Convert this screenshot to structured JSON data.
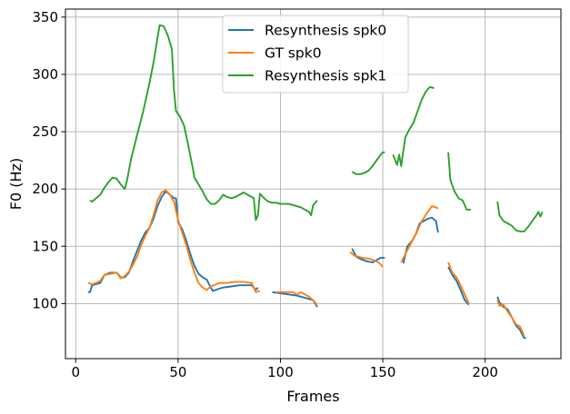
{
  "chart_data": {
    "type": "line",
    "title": "",
    "xlabel": "Frames",
    "ylabel": "F0 (Hz)",
    "xlim": [
      -5,
      237
    ],
    "ylim": [
      52,
      357
    ],
    "xticks": [
      0,
      50,
      100,
      150,
      200
    ],
    "yticks": [
      100,
      150,
      200,
      250,
      300,
      350
    ],
    "grid": true,
    "legend_position": "top-center",
    "series": [
      {
        "name": "Resynthesis spk0",
        "color": "#1f77b4",
        "segments": [
          [
            [
              6,
              110
            ],
            [
              7,
              110
            ],
            [
              8,
              116
            ],
            [
              10,
              117
            ],
            [
              12,
              118
            ],
            [
              14,
              125
            ],
            [
              17,
              127
            ],
            [
              20,
              127
            ],
            [
              22,
              123
            ],
            [
              24,
              123
            ],
            [
              26,
              127
            ],
            [
              28,
              137
            ],
            [
              30,
              146
            ],
            [
              32,
              155
            ],
            [
              34,
              162
            ],
            [
              36,
              166
            ],
            [
              38,
              174
            ],
            [
              40,
              185
            ],
            [
              42,
              193
            ],
            [
              44,
              198
            ],
            [
              46,
              195
            ],
            [
              48,
              192
            ],
            [
              49,
              192
            ],
            [
              50,
              171
            ],
            [
              52,
              165
            ],
            [
              54,
              155
            ],
            [
              56,
              143
            ],
            [
              58,
              133
            ],
            [
              60,
              126
            ],
            [
              62,
              123
            ],
            [
              64,
              121
            ],
            [
              66,
              114
            ],
            [
              67,
              111
            ],
            [
              70,
              113
            ],
            [
              72,
              114
            ],
            [
              76,
              115
            ],
            [
              80,
              116
            ],
            [
              84,
              116
            ],
            [
              86,
              116
            ],
            [
              88,
              112
            ],
            [
              89,
              114
            ]
          ],
          [
            [
              96,
              110
            ],
            [
              100,
              109
            ],
            [
              104,
              108
            ],
            [
              108,
              107
            ],
            [
              112,
              105
            ],
            [
              116,
              103
            ],
            [
              118,
              97
            ]
          ],
          [
            [
              135,
              148
            ],
            [
              137,
              141
            ],
            [
              139,
              139
            ],
            [
              142,
              137
            ],
            [
              145,
              136
            ],
            [
              147,
              138
            ],
            [
              149,
              140
            ],
            [
              151,
              140
            ]
          ],
          [
            [
              160,
              135
            ],
            [
              162,
              150
            ],
            [
              164,
              154
            ],
            [
              166,
              160
            ],
            [
              168,
              170
            ],
            [
              170,
              172
            ],
            [
              172,
              174
            ],
            [
              174,
              175
            ],
            [
              176,
              172
            ],
            [
              177,
              162
            ]
          ],
          [
            [
              182,
              132
            ],
            [
              184,
              125
            ],
            [
              186,
              120
            ],
            [
              188,
              112
            ],
            [
              190,
              103
            ],
            [
              192,
              99
            ]
          ],
          [
            [
              206,
              106
            ],
            [
              207,
              101
            ],
            [
              209,
              97
            ],
            [
              211,
              95
            ],
            [
              213,
              88
            ],
            [
              215,
              81
            ],
            [
              217,
              77
            ],
            [
              219,
              70
            ],
            [
              220,
              70
            ]
          ]
        ]
      },
      {
        "name": "GT spk0",
        "color": "#ff7f0e",
        "segments": [
          [
            [
              6,
              118
            ],
            [
              8,
              117
            ],
            [
              10,
              118
            ],
            [
              12,
              120
            ],
            [
              14,
              125
            ],
            [
              17,
              126
            ],
            [
              20,
              127
            ],
            [
              22,
              122
            ],
            [
              24,
              124
            ],
            [
              26,
              128
            ],
            [
              28,
              134
            ],
            [
              30,
              141
            ],
            [
              32,
              151
            ],
            [
              34,
              159
            ],
            [
              36,
              166
            ],
            [
              38,
              177
            ],
            [
              40,
              190
            ],
            [
              42,
              197
            ],
            [
              44,
              199
            ],
            [
              46,
              195
            ],
            [
              48,
              189
            ],
            [
              50,
              173
            ],
            [
              52,
              162
            ],
            [
              54,
              151
            ],
            [
              56,
              138
            ],
            [
              58,
              127
            ],
            [
              60,
              118
            ],
            [
              62,
              114
            ],
            [
              64,
              112
            ],
            [
              66,
              115
            ],
            [
              70,
              118
            ],
            [
              74,
              118
            ],
            [
              78,
              119
            ],
            [
              82,
              119
            ],
            [
              86,
              118
            ],
            [
              88,
              110
            ],
            [
              90,
              111
            ]
          ],
          [
            [
              98,
              110
            ],
            [
              102,
              110
            ],
            [
              106,
              110
            ],
            [
              108,
              108
            ],
            [
              110,
              110
            ],
            [
              114,
              106
            ],
            [
              117,
              101
            ],
            [
              118,
              98
            ]
          ],
          [
            [
              134,
              145
            ],
            [
              136,
              142
            ],
            [
              140,
              140
            ],
            [
              144,
              139
            ],
            [
              148,
              136
            ],
            [
              150,
              132
            ]
          ],
          [
            [
              159,
              136
            ],
            [
              161,
              143
            ],
            [
              163,
              150
            ],
            [
              166,
              160
            ],
            [
              169,
              172
            ],
            [
              172,
              180
            ],
            [
              174,
              185
            ],
            [
              176,
              184
            ],
            [
              177,
              183
            ]
          ],
          [
            [
              182,
              136
            ],
            [
              184,
              127
            ],
            [
              186,
              123
            ],
            [
              188,
              116
            ],
            [
              190,
              108
            ],
            [
              192,
              100
            ]
          ],
          [
            [
              206,
              103
            ],
            [
              207,
              98
            ],
            [
              209,
              99
            ],
            [
              211,
              93
            ],
            [
              213,
              88
            ],
            [
              215,
              82
            ],
            [
              217,
              80
            ],
            [
              219,
              72
            ]
          ]
        ]
      },
      {
        "name": "Resynthesis spk1",
        "color": "#2ca02c",
        "segments": [
          [
            [
              7,
              190
            ],
            [
              8,
              189
            ],
            [
              10,
              192
            ],
            [
              12,
              195
            ],
            [
              14,
              201
            ],
            [
              16,
              206
            ],
            [
              18,
              210
            ],
            [
              20,
              209
            ],
            [
              22,
              204
            ],
            [
              24,
              200
            ],
            [
              25,
              207
            ],
            [
              27,
              226
            ],
            [
              30,
              247
            ],
            [
              33,
              268
            ],
            [
              36,
              292
            ],
            [
              38,
              310
            ],
            [
              40,
              332
            ],
            [
              41,
              343
            ],
            [
              43,
              342
            ],
            [
              45,
              334
            ],
            [
              47,
              322
            ],
            [
              48,
              286
            ],
            [
              49,
              268
            ],
            [
              51,
              263
            ],
            [
              53,
              255
            ],
            [
              55,
              238
            ],
            [
              57,
              220
            ],
            [
              58,
              210
            ],
            [
              60,
              204
            ],
            [
              62,
              198
            ],
            [
              64,
              191
            ],
            [
              66,
              187
            ],
            [
              68,
              187
            ],
            [
              70,
              190
            ],
            [
              72,
              195
            ],
            [
              74,
              193
            ],
            [
              76,
              192
            ],
            [
              78,
              193
            ],
            [
              80,
              195
            ],
            [
              82,
              197
            ],
            [
              84,
              195
            ],
            [
              86,
              193
            ],
            [
              87,
              192
            ],
            [
              88,
              173
            ],
            [
              89,
              177
            ],
            [
              90,
              196
            ],
            [
              92,
              192
            ],
            [
              94,
              189
            ],
            [
              96,
              188
            ],
            [
              98,
              188
            ],
            [
              100,
              187
            ],
            [
              104,
              187
            ],
            [
              108,
              185
            ],
            [
              110,
              184
            ],
            [
              112,
              182
            ],
            [
              114,
              180
            ],
            [
              115,
              177
            ],
            [
              116,
              186
            ],
            [
              118,
              190
            ]
          ],
          [
            [
              135,
              215
            ],
            [
              137,
              213
            ],
            [
              139,
              213
            ],
            [
              141,
              214
            ],
            [
              143,
              216
            ],
            [
              145,
              220
            ],
            [
              147,
              225
            ],
            [
              149,
              230
            ],
            [
              150,
              232
            ],
            [
              151,
              232
            ]
          ],
          [
            [
              155,
              230
            ],
            [
              157,
              221
            ],
            [
              158,
              230
            ],
            [
              159,
              220
            ],
            [
              161,
              245
            ],
            [
              163,
              252
            ],
            [
              165,
              258
            ],
            [
              167,
              268
            ],
            [
              169,
              278
            ],
            [
              171,
              285
            ],
            [
              173,
              289
            ],
            [
              175,
              288
            ]
          ],
          [
            [
              182,
              232
            ],
            [
              183,
              208
            ],
            [
              185,
              198
            ],
            [
              187,
              192
            ],
            [
              189,
              190
            ],
            [
              191,
              182
            ],
            [
              192,
              182
            ],
            [
              193,
              182
            ]
          ],
          [
            [
              206,
              189
            ],
            [
              207,
              177
            ],
            [
              209,
              172
            ],
            [
              211,
              170
            ],
            [
              213,
              168
            ],
            [
              215,
              164
            ],
            [
              217,
              163
            ],
            [
              219,
              163
            ],
            [
              221,
              167
            ],
            [
              223,
              172
            ],
            [
              225,
              177
            ],
            [
              226,
              180
            ],
            [
              227,
              176
            ],
            [
              228,
              180
            ]
          ]
        ]
      }
    ]
  }
}
